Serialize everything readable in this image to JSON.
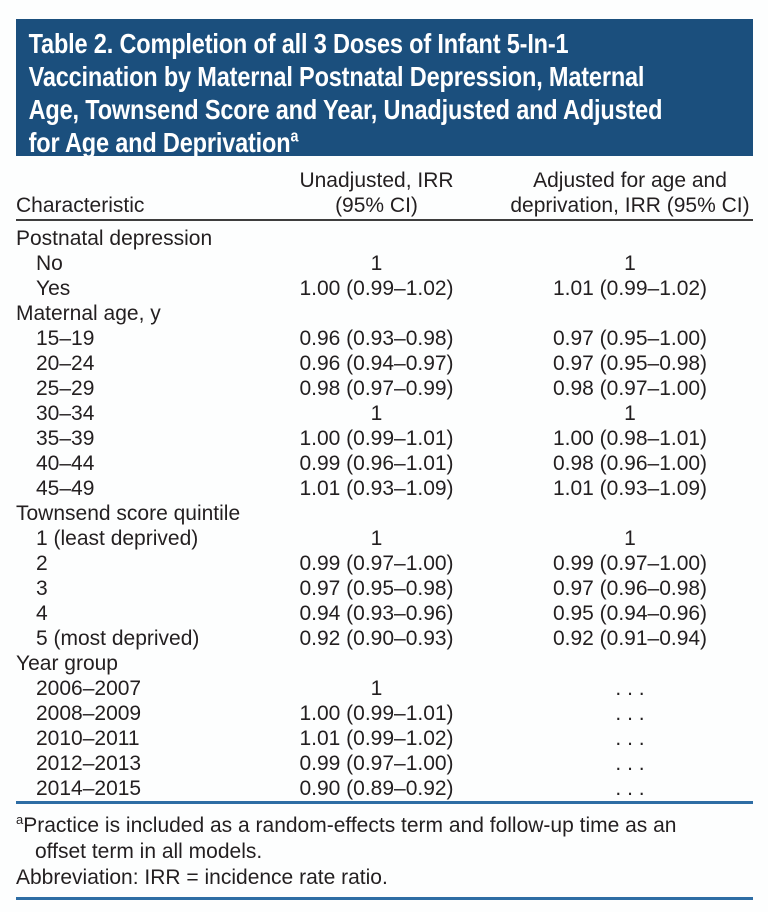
{
  "colors": {
    "header_bg": "#1b4f7d",
    "rule_blue": "#2e6da4",
    "text": "#231f20"
  },
  "title": {
    "lines": [
      "Table 2. Completion of all 3 Doses of Infant 5-In-1",
      "Vaccination by Maternal Postnatal Depression, Maternal",
      "Age, Townsend Score and Year, Unadjusted and Adjusted",
      "for Age and Deprivation"
    ],
    "footnote_marker": "a"
  },
  "table": {
    "header": {
      "characteristic": "Characteristic",
      "unadjusted_lines": [
        "Unadjusted, IRR",
        "(95% CI)"
      ],
      "adjusted_lines": [
        "Adjusted for age and",
        "deprivation, IRR (95% CI)"
      ]
    },
    "rows": [
      {
        "label": "Postnatal depression",
        "indent": false,
        "unadjusted": "",
        "adjusted": ""
      },
      {
        "label": "No",
        "indent": true,
        "unadjusted": "1",
        "adjusted": "1"
      },
      {
        "label": "Yes",
        "indent": true,
        "unadjusted": "1.00 (0.99–1.02)",
        "adjusted": "1.01 (0.99–1.02)"
      },
      {
        "label": "Maternal age, y",
        "indent": false,
        "unadjusted": "",
        "adjusted": ""
      },
      {
        "label": "15–19",
        "indent": true,
        "unadjusted": "0.96 (0.93–0.98)",
        "adjusted": "0.97 (0.95–1.00)"
      },
      {
        "label": "20–24",
        "indent": true,
        "unadjusted": "0.96 (0.94–0.97)",
        "adjusted": "0.97 (0.95–0.98)"
      },
      {
        "label": "25–29",
        "indent": true,
        "unadjusted": "0.98 (0.97–0.99)",
        "adjusted": "0.98 (0.97–1.00)"
      },
      {
        "label": "30–34",
        "indent": true,
        "unadjusted": "1",
        "adjusted": "1"
      },
      {
        "label": "35–39",
        "indent": true,
        "unadjusted": "1.00 (0.99–1.01)",
        "adjusted": "1.00 (0.98–1.01)"
      },
      {
        "label": "40–44",
        "indent": true,
        "unadjusted": "0.99 (0.96–1.01)",
        "adjusted": "0.98 (0.96–1.00)"
      },
      {
        "label": "45–49",
        "indent": true,
        "unadjusted": "1.01 (0.93–1.09)",
        "adjusted": "1.01 (0.93–1.09)"
      },
      {
        "label": "Townsend score quintile",
        "indent": false,
        "unadjusted": "",
        "adjusted": ""
      },
      {
        "label": "1 (least deprived)",
        "indent": true,
        "unadjusted": "1",
        "adjusted": "1"
      },
      {
        "label": "2",
        "indent": true,
        "unadjusted": "0.99 (0.97–1.00)",
        "adjusted": "0.99 (0.97–1.00)"
      },
      {
        "label": "3",
        "indent": true,
        "unadjusted": "0.97 (0.95–0.98)",
        "adjusted": "0.97 (0.96–0.98)"
      },
      {
        "label": "4",
        "indent": true,
        "unadjusted": "0.94 (0.93–0.96)",
        "adjusted": "0.95 (0.94–0.96)"
      },
      {
        "label": "5 (most deprived)",
        "indent": true,
        "unadjusted": "0.92 (0.90–0.93)",
        "adjusted": "0.92 (0.91–0.94)"
      },
      {
        "label": "Year group",
        "indent": false,
        "unadjusted": "",
        "adjusted": ""
      },
      {
        "label": "2006–2007",
        "indent": true,
        "unadjusted": "1",
        "adjusted": ". . ."
      },
      {
        "label": "2008–2009",
        "indent": true,
        "unadjusted": "1.00 (0.99–1.01)",
        "adjusted": ". . ."
      },
      {
        "label": "2010–2011",
        "indent": true,
        "unadjusted": "1.01 (0.99–1.02)",
        "adjusted": ". . ."
      },
      {
        "label": "2012–2013",
        "indent": true,
        "unadjusted": "0.99 (0.97–1.00)",
        "adjusted": ". . ."
      },
      {
        "label": "2014–2015",
        "indent": true,
        "unadjusted": "0.90 (0.89–0.92)",
        "adjusted": ". . ."
      }
    ]
  },
  "footnotes": {
    "marker": "a",
    "line1": "Practice is included as a random-effects term and follow-up time as an",
    "line2": "offset term in all models.",
    "abbreviation": "Abbreviation: IRR = incidence rate ratio."
  }
}
